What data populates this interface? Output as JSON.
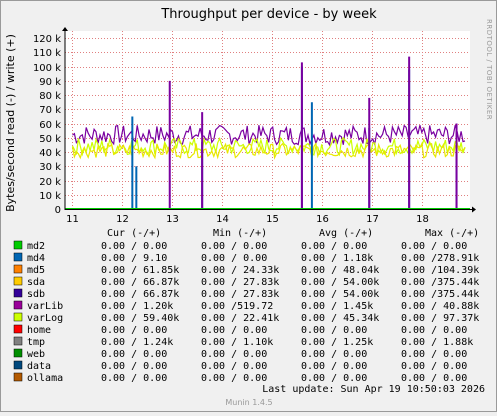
{
  "chart_data": {
    "type": "line",
    "title": "Throughput per device - by week",
    "ylabel": "Bytes/second read (-) / write (+)",
    "side_label": "RRDTOOL / TOBI OETIKER",
    "ylim": [
      0,
      125000
    ],
    "y_ticks": [
      {
        "value": 0,
        "label": "0"
      },
      {
        "value": 10000,
        "label": "10 k"
      },
      {
        "value": 20000,
        "label": "20 k"
      },
      {
        "value": 30000,
        "label": "30 k"
      },
      {
        "value": 40000,
        "label": "40 k"
      },
      {
        "value": 50000,
        "label": "50 k"
      },
      {
        "value": 60000,
        "label": "60 k"
      },
      {
        "value": 70000,
        "label": "70 k"
      },
      {
        "value": 80000,
        "label": "80 k"
      },
      {
        "value": 90000,
        "label": "90 k"
      },
      {
        "value": 100000,
        "label": "100 k"
      },
      {
        "value": 110000,
        "label": "110 k"
      },
      {
        "value": 120000,
        "label": "120 k"
      }
    ],
    "xlim": [
      10.85,
      18.97
    ],
    "x_ticks": [
      {
        "value": 11,
        "label": "11"
      },
      {
        "value": 12,
        "label": "12"
      },
      {
        "value": 13,
        "label": "13"
      },
      {
        "value": 14,
        "label": "14"
      },
      {
        "value": 15,
        "label": "15"
      },
      {
        "value": 16,
        "label": "16"
      },
      {
        "value": 17,
        "label": "17"
      },
      {
        "value": 18,
        "label": "18"
      }
    ],
    "grid": true,
    "series": [
      {
        "name": "sdb",
        "color": "#7a00a0",
        "base": 52000,
        "amp": 7000
      },
      {
        "name": "sda",
        "color": "#ccff00",
        "base": 44000,
        "amp": 6000
      },
      {
        "name": "varLog",
        "color": "#e8e800",
        "base": 41000,
        "amp": 5000
      },
      {
        "name": "md5",
        "color": "#0066b3",
        "base": 0,
        "amp": 0
      }
    ],
    "spikes": [
      {
        "x": 12.2,
        "y": 65000,
        "color": "#0066b3"
      },
      {
        "x": 12.28,
        "y": 30000,
        "color": "#0066b3"
      },
      {
        "x": 12.95,
        "y": 90000,
        "color": "#7a00a0"
      },
      {
        "x": 13.6,
        "y": 47000,
        "color": "#0066b3"
      },
      {
        "x": 13.6,
        "y": 68000,
        "color": "#7a00a0"
      },
      {
        "x": 15.6,
        "y": 100000,
        "color": "#0066b3"
      },
      {
        "x": 15.6,
        "y": 103000,
        "color": "#7a00a0"
      },
      {
        "x": 15.8,
        "y": 75000,
        "color": "#0066b3"
      },
      {
        "x": 16.95,
        "y": 57000,
        "color": "#0066b3"
      },
      {
        "x": 16.95,
        "y": 78000,
        "color": "#7a00a0"
      },
      {
        "x": 17.75,
        "y": 98000,
        "color": "#0066b3"
      },
      {
        "x": 17.75,
        "y": 107000,
        "color": "#7a00a0"
      },
      {
        "x": 18.7,
        "y": 40000,
        "color": "#0066b3"
      },
      {
        "x": 18.7,
        "y": 60000,
        "color": "#7a00a0"
      }
    ]
  },
  "legend": {
    "headers": {
      "cur": "Cur (-/+)",
      "min": "Min (-/+)",
      "avg": "Avg (-/+)",
      "max": "Max (-/+)"
    },
    "rows": [
      {
        "name": "md2",
        "color": "#00cc00",
        "cur": "0.00 /  0.00",
        "min": "0.00 /  0.00",
        "avg": "0.00 /  0.00",
        "max": "0.00 /  0.00"
      },
      {
        "name": "md4",
        "color": "#0066b3",
        "cur": "0.00 /  9.10",
        "min": "0.00 /  0.00",
        "avg": "0.00 /  1.18k",
        "max": "0.00 /278.91k"
      },
      {
        "name": "md5",
        "color": "#ff8000",
        "cur": "0.00 / 61.85k",
        "min": "0.00 / 24.33k",
        "avg": "0.00 / 48.04k",
        "max": "0.00 /104.39k"
      },
      {
        "name": "sda",
        "color": "#ffcc00",
        "cur": "0.00 / 66.87k",
        "min": "0.00 / 27.83k",
        "avg": "0.00 / 54.00k",
        "max": "0.00 /375.44k"
      },
      {
        "name": "sdb",
        "color": "#330099",
        "cur": "0.00 / 66.87k",
        "min": "0.00 / 27.83k",
        "avg": "0.00 / 54.00k",
        "max": "0.00 /375.44k"
      },
      {
        "name": "varLib",
        "color": "#990099",
        "cur": "0.00 /  1.20k",
        "min": "0.00 /519.72",
        "avg": "0.00 /  1.45k",
        "max": "0.00 / 40.88k"
      },
      {
        "name": "varLog",
        "color": "#ccff00",
        "cur": "0.00 / 59.40k",
        "min": "0.00 / 22.41k",
        "avg": "0.00 / 45.34k",
        "max": "0.00 / 97.37k"
      },
      {
        "name": "home",
        "color": "#ff0000",
        "cur": "0.00 /  0.00",
        "min": "0.00 /  0.00",
        "avg": "0.00 /  0.00",
        "max": "0.00 /  0.00"
      },
      {
        "name": "tmp",
        "color": "#808080",
        "cur": "0.00 /  1.24k",
        "min": "0.00 /  1.10k",
        "avg": "0.00 /  1.25k",
        "max": "0.00 /  1.88k"
      },
      {
        "name": "web",
        "color": "#008f00",
        "cur": "0.00 /  0.00",
        "min": "0.00 /  0.00",
        "avg": "0.00 /  0.00",
        "max": "0.00 /  0.00"
      },
      {
        "name": "data",
        "color": "#00487d",
        "cur": "0.00 /  0.00",
        "min": "0.00 /  0.00",
        "avg": "0.00 /  0.00",
        "max": "0.00 /  0.00"
      },
      {
        "name": "ollama",
        "color": "#b35a00",
        "cur": "0.00 /  0.00",
        "min": "0.00 /  0.00",
        "avg": "0.00 /  0.00",
        "max": "0.00 /  0.00"
      }
    ]
  },
  "last_update": "Last update:  Sun Apr 19 10:50:03 2026",
  "footer": "Munin 1.4.5"
}
